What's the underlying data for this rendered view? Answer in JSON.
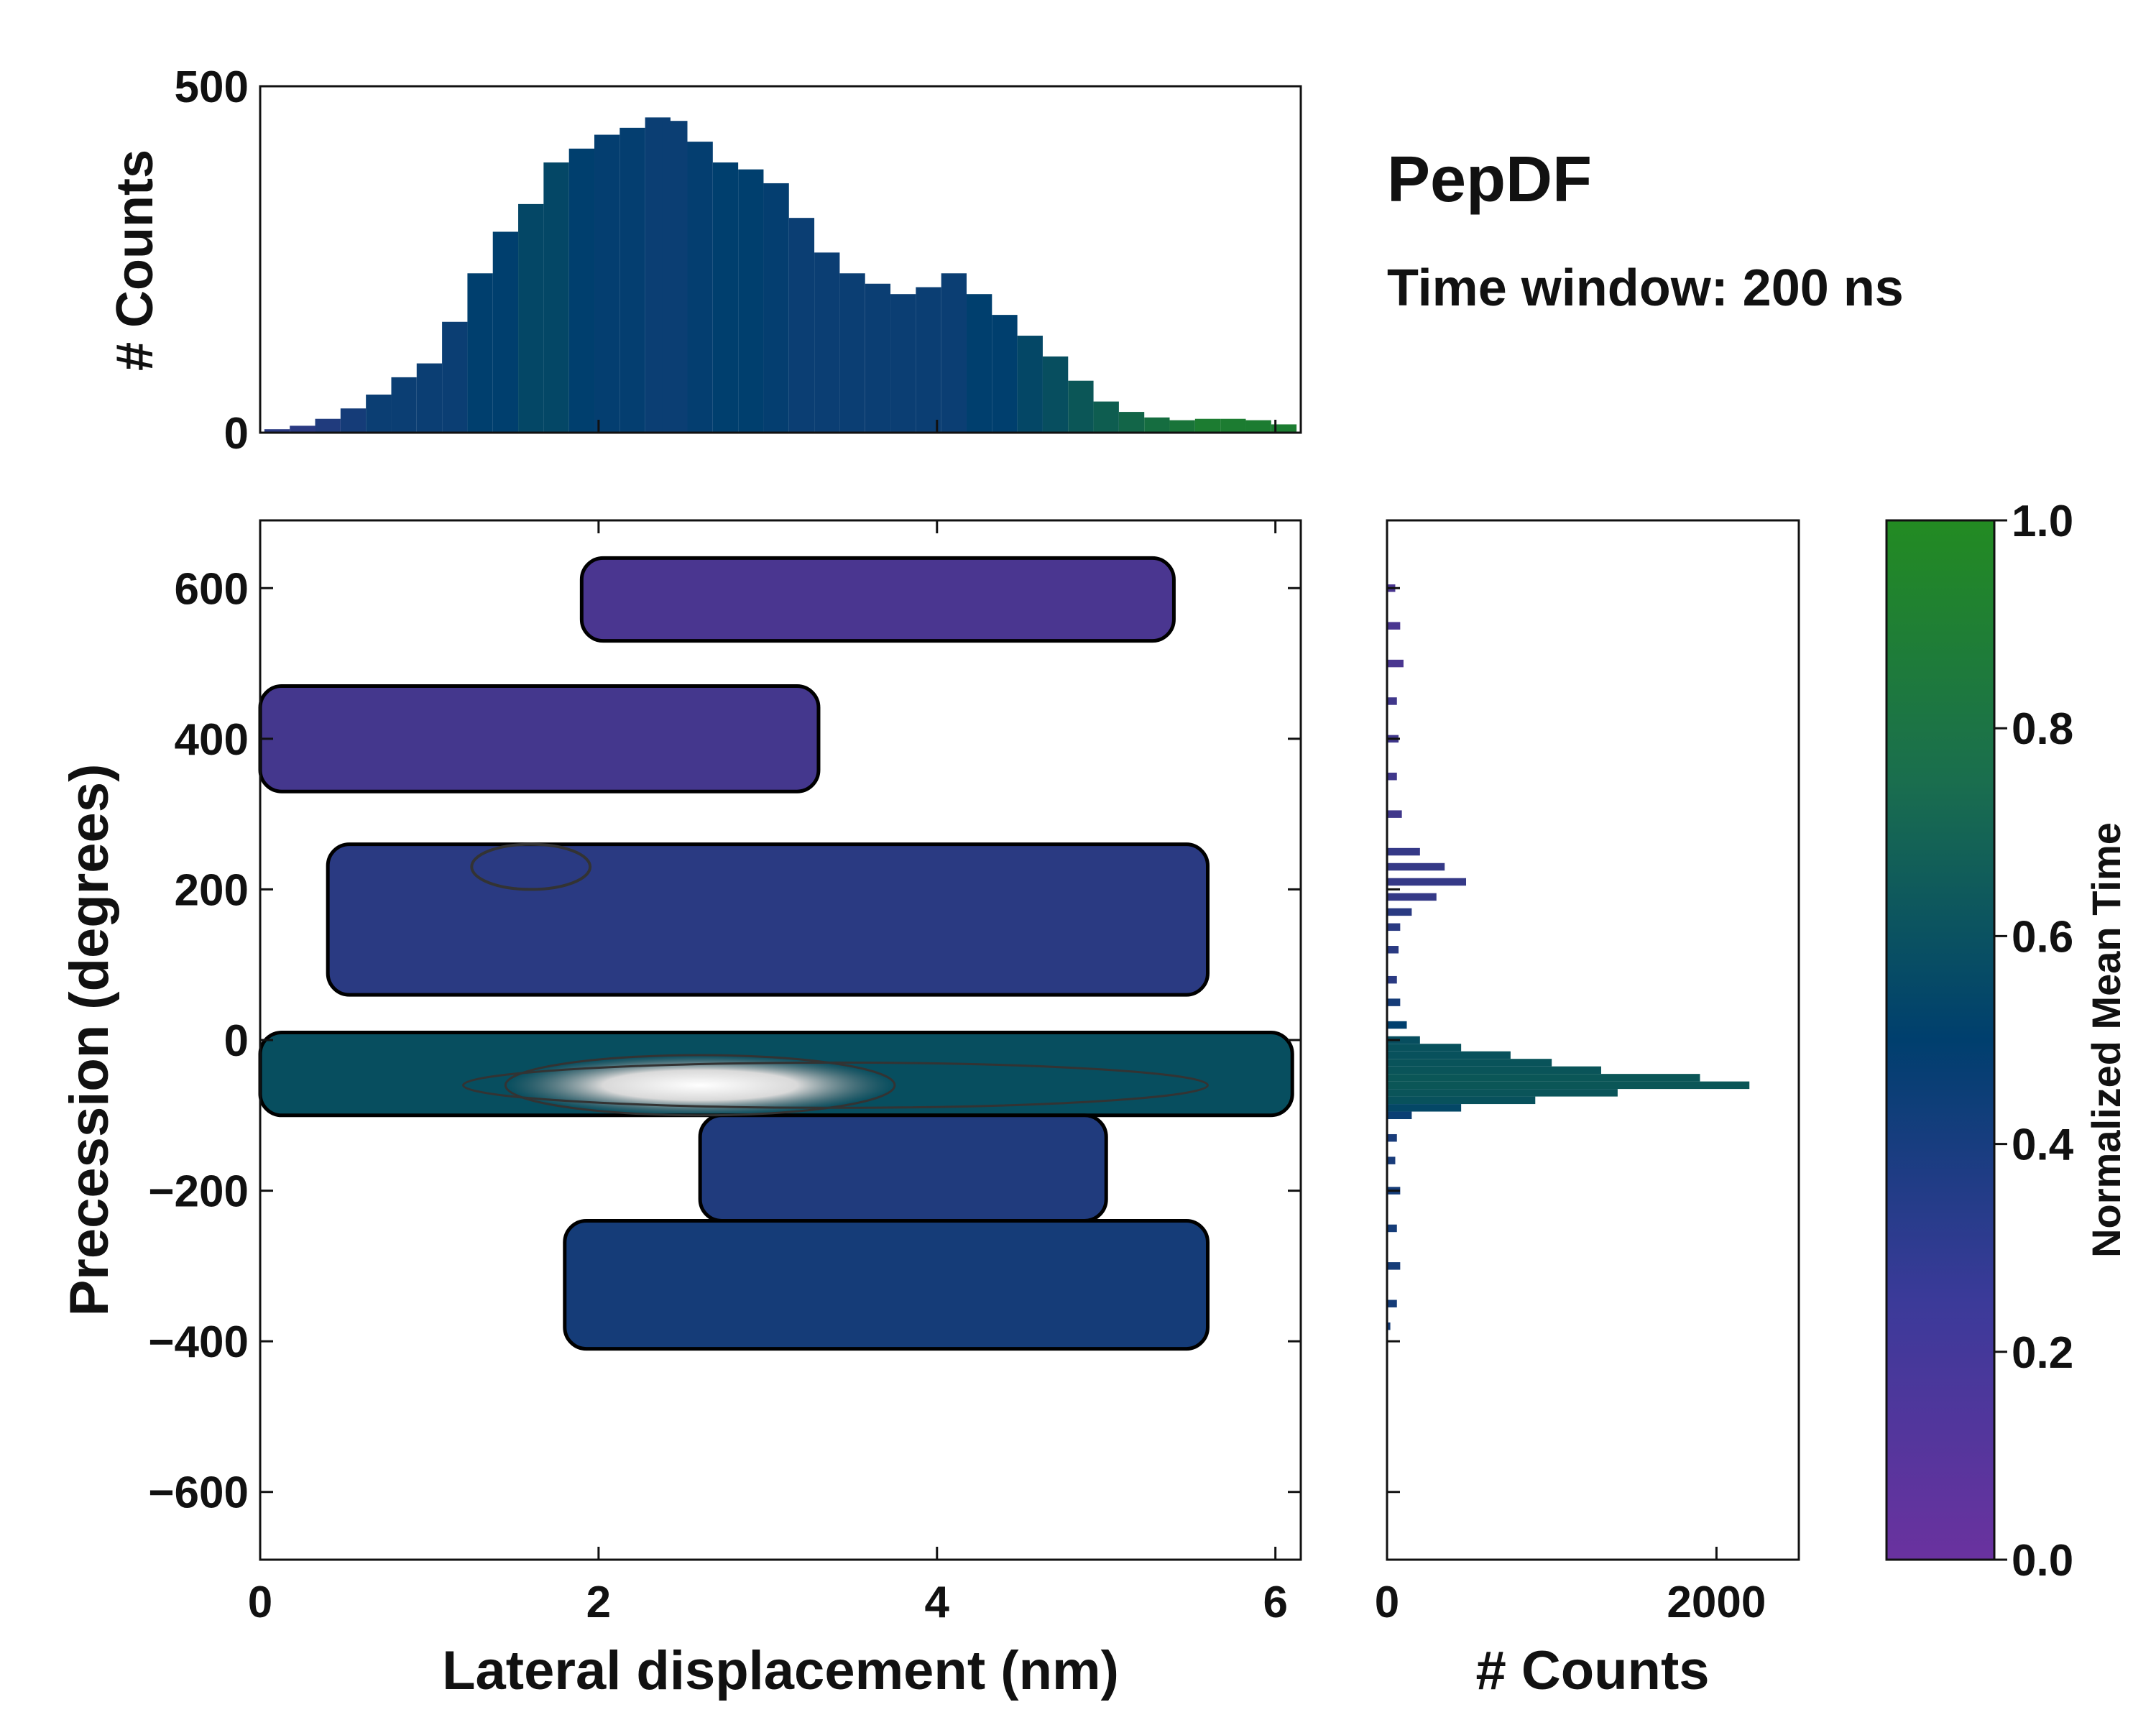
{
  "figure": {
    "title": "PepDF",
    "subtitle": "Time window: 200 ns"
  },
  "colors": {
    "cmap_low": "#6a329f",
    "cmap_mid": "#003f6e",
    "cmap_high": "#238b22",
    "contour_line": "#000000",
    "density_core": "#f0f0f0"
  },
  "chart_data": [
    {
      "id": "top_histogram",
      "type": "bar",
      "xlabel": "",
      "ylabel": "# Counts",
      "xlim": [
        0,
        6.15
      ],
      "ylim": [
        0,
        500
      ],
      "yticks": [
        0,
        500
      ],
      "bin_width": 0.05,
      "x": [
        0.1,
        0.25,
        0.4,
        0.55,
        0.7,
        0.85,
        1.0,
        1.15,
        1.3,
        1.45,
        1.6,
        1.75,
        1.9,
        2.05,
        2.2,
        2.35,
        2.45,
        2.6,
        2.75,
        2.9,
        3.05,
        3.2,
        3.35,
        3.5,
        3.65,
        3.8,
        3.95,
        4.1,
        4.25,
        4.4,
        4.55,
        4.7,
        4.85,
        5.0,
        5.15,
        5.3,
        5.45,
        5.6,
        5.75,
        5.9,
        6.05
      ],
      "values": [
        5,
        10,
        20,
        35,
        55,
        80,
        100,
        160,
        230,
        290,
        330,
        390,
        410,
        430,
        440,
        455,
        450,
        420,
        390,
        380,
        360,
        310,
        260,
        230,
        215,
        200,
        210,
        230,
        200,
        170,
        140,
        110,
        75,
        45,
        30,
        22,
        18,
        20,
        20,
        18,
        12
      ],
      "color_values": [
        0.3,
        0.3,
        0.35,
        0.4,
        0.45,
        0.45,
        0.45,
        0.45,
        0.5,
        0.5,
        0.55,
        0.55,
        0.5,
        0.48,
        0.48,
        0.45,
        0.45,
        0.48,
        0.5,
        0.5,
        0.48,
        0.45,
        0.45,
        0.45,
        0.45,
        0.45,
        0.45,
        0.45,
        0.5,
        0.5,
        0.55,
        0.6,
        0.65,
        0.7,
        0.75,
        0.8,
        0.85,
        0.9,
        0.9,
        0.9,
        0.9
      ]
    },
    {
      "id": "main_2d_histogram",
      "type": "heatmap",
      "xlabel": "Lateral displacement (nm)",
      "ylabel": "Precession (degrees)",
      "xlim": [
        0,
        6.15
      ],
      "ylim": [
        -690,
        690
      ],
      "xticks": [
        0,
        2,
        4,
        6
      ],
      "yticks": [
        -600,
        -400,
        -200,
        0,
        200,
        400,
        600
      ],
      "regions": [
        {
          "name": "band_+600",
          "x_range": [
            1.9,
            5.4
          ],
          "y_range": [
            530,
            640
          ],
          "color_value": 0.15
        },
        {
          "name": "band_+400",
          "x_range": [
            0.0,
            3.3
          ],
          "y_range": [
            330,
            470
          ],
          "color_value": 0.18
        },
        {
          "name": "band_+200",
          "x_range": [
            0.4,
            5.6
          ],
          "y_range": [
            60,
            260
          ],
          "color_value": 0.3
        },
        {
          "name": "band_0",
          "x_range": [
            0.0,
            6.1
          ],
          "y_range": [
            -100,
            10
          ],
          "color_value": 0.6
        },
        {
          "name": "band_-200",
          "x_range": [
            2.6,
            5.0
          ],
          "y_range": [
            -240,
            -100
          ],
          "color_value": 0.35
        },
        {
          "name": "band_-400",
          "x_range": [
            1.8,
            5.6
          ],
          "y_range": [
            -410,
            -240
          ],
          "color_value": 0.4
        }
      ],
      "colorbar": {
        "label": "Normalized Mean Time",
        "range": [
          0.0,
          1.0
        ],
        "ticks": [
          0.0,
          0.2,
          0.4,
          0.6,
          0.8,
          1.0
        ]
      }
    },
    {
      "id": "right_histogram",
      "type": "bar",
      "orientation": "horizontal",
      "xlabel": "# Counts",
      "ylabel": "",
      "xlim": [
        0,
        2500
      ],
      "ylim": [
        -690,
        690
      ],
      "xticks": [
        0,
        2000
      ],
      "bin_height": 10,
      "y": [
        600,
        550,
        500,
        450,
        400,
        350,
        300,
        250,
        230,
        210,
        190,
        170,
        150,
        120,
        80,
        50,
        20,
        0,
        -10,
        -20,
        -30,
        -40,
        -50,
        -60,
        -70,
        -80,
        -90,
        -100,
        -130,
        -160,
        -200,
        -250,
        -300,
        -350,
        -380
      ],
      "values": [
        50,
        80,
        100,
        60,
        70,
        60,
        90,
        200,
        350,
        480,
        300,
        150,
        80,
        70,
        60,
        80,
        120,
        200,
        450,
        750,
        1000,
        1300,
        1900,
        2200,
        1400,
        900,
        450,
        150,
        60,
        50,
        80,
        60,
        80,
        60,
        20
      ],
      "color_values": [
        0.15,
        0.15,
        0.15,
        0.2,
        0.2,
        0.2,
        0.2,
        0.25,
        0.25,
        0.25,
        0.25,
        0.3,
        0.3,
        0.3,
        0.3,
        0.4,
        0.5,
        0.6,
        0.62,
        0.62,
        0.63,
        0.64,
        0.65,
        0.65,
        0.64,
        0.62,
        0.55,
        0.45,
        0.38,
        0.38,
        0.4,
        0.4,
        0.4,
        0.4,
        0.4
      ]
    }
  ]
}
